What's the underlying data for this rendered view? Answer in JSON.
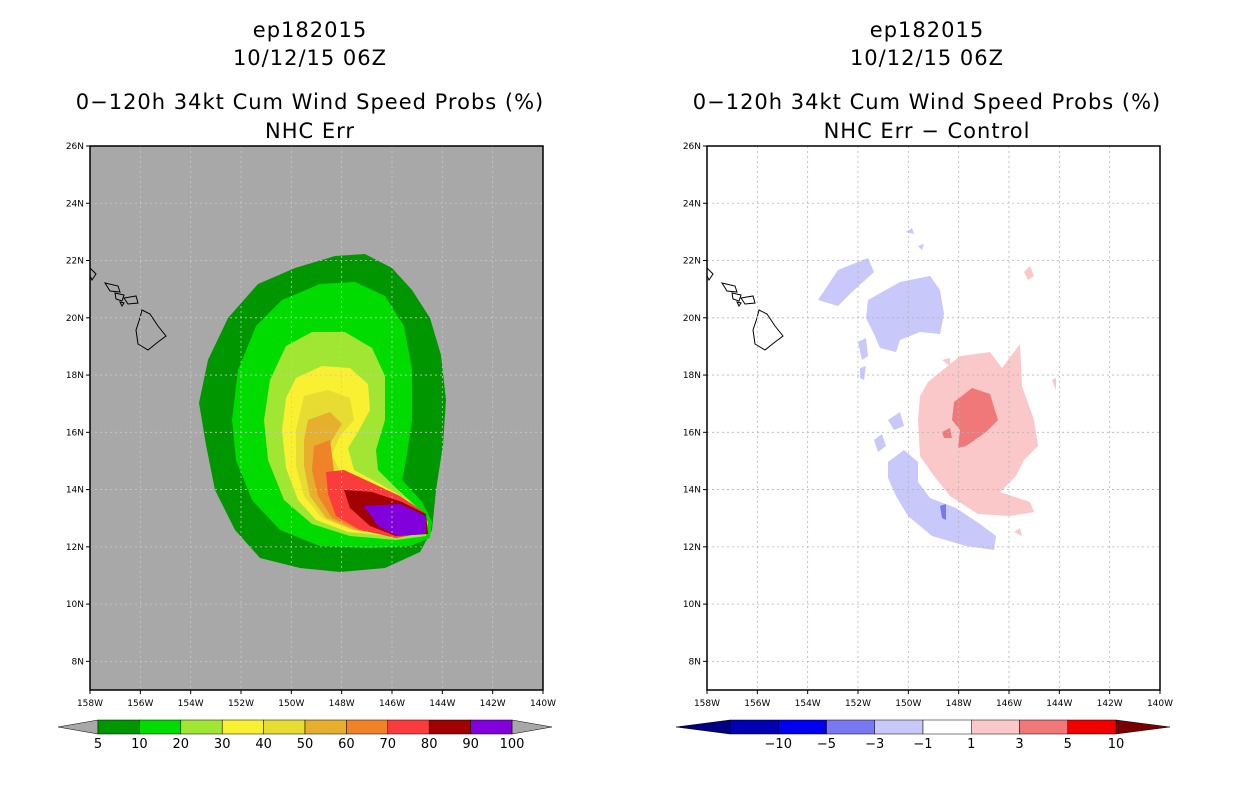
{
  "left_panel": {
    "title_id": "ep182015",
    "title_time": "10/12/15 06Z",
    "title_main": "0−120h 34kt Cum Wind Speed Probs (%)",
    "title_sub": "NHC Err"
  },
  "right_panel": {
    "title_id": "ep182015",
    "title_time": "10/12/15 06Z",
    "title_main": "0−120h 34kt Cum Wind Speed Probs (%)",
    "title_sub": "NHC Err − Control"
  },
  "chart_data": [
    {
      "type": "contour-map",
      "title": "0-120h 34kt Cum Wind Speed Probs (%) NHC Err",
      "lon_ticks": [
        "158W",
        "156W",
        "154W",
        "152W",
        "150W",
        "148W",
        "146W",
        "144W",
        "142W",
        "140W"
      ],
      "lat_ticks": [
        "8N",
        "10N",
        "12N",
        "14N",
        "16N",
        "18N",
        "20N",
        "22N",
        "24N",
        "26N"
      ],
      "lon_range": [
        -158,
        -140
      ],
      "lat_range": [
        7,
        26
      ],
      "colorbar": {
        "levels": [
          "5",
          "10",
          "20",
          "30",
          "40",
          "50",
          "60",
          "70",
          "80",
          "90",
          "100"
        ],
        "colors": [
          "#009600",
          "#00dc00",
          "#a0e632",
          "#faf032",
          "#e6dc32",
          "#e6af2d",
          "#f08228",
          "#fa3c3c",
          "#a00000",
          "#8200dc"
        ]
      },
      "probability_contours_percent": [
        5,
        10,
        20,
        30,
        40,
        50,
        60,
        70,
        80,
        90
      ]
    },
    {
      "type": "contour-map",
      "title": "0-120h 34kt Cum Wind Speed Probs (%) NHC Err - Control",
      "lon_ticks": [
        "158W",
        "156W",
        "154W",
        "152W",
        "150W",
        "148W",
        "146W",
        "144W",
        "142W",
        "140W"
      ],
      "lat_ticks": [
        "8N",
        "10N",
        "12N",
        "14N",
        "16N",
        "18N",
        "20N",
        "22N",
        "24N",
        "26N"
      ],
      "lon_range": [
        -158,
        -140
      ],
      "lat_range": [
        7,
        26
      ],
      "colorbar": {
        "levels": [
          "−10",
          "−5",
          "−3",
          "−1",
          "1",
          "3",
          "5",
          "10"
        ],
        "colors": [
          "#0000b4",
          "#0000f0",
          "#7878f0",
          "#c8c8fa",
          "#ffffff",
          "#fac8c8",
          "#f07878",
          "#f00000"
        ]
      },
      "difference_contours": [
        -10,
        -5,
        -3,
        -1,
        1,
        3,
        5,
        10
      ]
    }
  ]
}
